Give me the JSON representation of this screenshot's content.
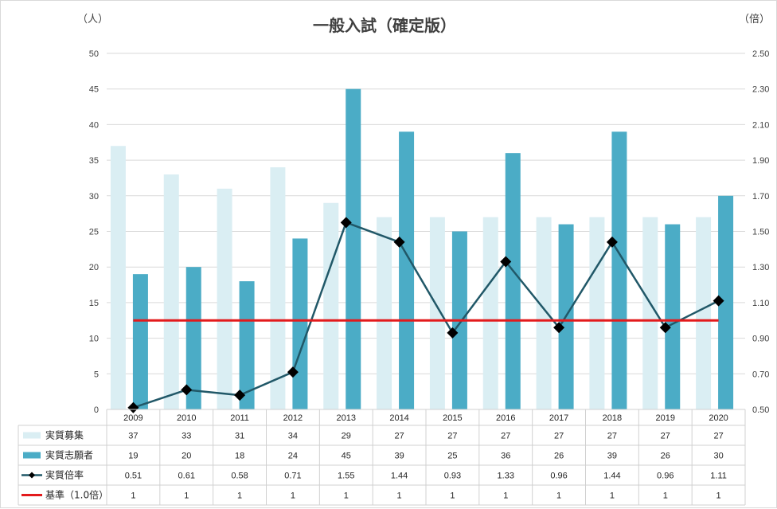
{
  "chart_data": {
    "type": "bar",
    "title": "一般入試（確定版）",
    "left_unit": "（人）",
    "right_unit": "（倍）",
    "categories": [
      "2009",
      "2010",
      "2011",
      "2012",
      "2013",
      "2014",
      "2015",
      "2016",
      "2017",
      "2018",
      "2019",
      "2020"
    ],
    "ylim": [
      0,
      50
    ],
    "y_ticks": [
      "0",
      "5",
      "10",
      "15",
      "20",
      "25",
      "30",
      "35",
      "40",
      "45",
      "50"
    ],
    "y2lim": [
      0.5,
      2.5
    ],
    "y2_ticks": [
      "0.50",
      "0.70",
      "0.90",
      "1.10",
      "1.30",
      "1.50",
      "1.70",
      "1.90",
      "2.10",
      "2.30",
      "2.50"
    ],
    "grid": true,
    "legend": "data-table",
    "series": [
      {
        "name": "実質募集",
        "kind": "bar",
        "axis": "left",
        "color": "#daeef3",
        "values": [
          37,
          33,
          31,
          34,
          29,
          27,
          27,
          27,
          27,
          27,
          27,
          27
        ],
        "labels": [
          "37",
          "33",
          "31",
          "34",
          "29",
          "27",
          "27",
          "27",
          "27",
          "27",
          "27",
          "27"
        ]
      },
      {
        "name": "実質志願者",
        "kind": "bar",
        "axis": "left",
        "color": "#4bacc6",
        "values": [
          19,
          20,
          18,
          24,
          45,
          39,
          25,
          36,
          26,
          39,
          26,
          30
        ],
        "labels": [
          "19",
          "20",
          "18",
          "24",
          "45",
          "39",
          "25",
          "36",
          "26",
          "39",
          "26",
          "30"
        ]
      },
      {
        "name": "実質倍率",
        "kind": "line",
        "axis": "right",
        "color": "#215868",
        "values": [
          0.51,
          0.61,
          0.58,
          0.71,
          1.55,
          1.44,
          0.93,
          1.33,
          0.96,
          1.44,
          0.96,
          1.11
        ],
        "labels": [
          "0.51",
          "0.61",
          "0.58",
          "0.71",
          "1.55",
          "1.44",
          "0.93",
          "1.33",
          "0.96",
          "1.44",
          "0.96",
          "1.11"
        ]
      },
      {
        "name": "基準（1.0倍）",
        "kind": "line",
        "axis": "right",
        "color": "#e31a1c",
        "values": [
          1,
          1,
          1,
          1,
          1,
          1,
          1,
          1,
          1,
          1,
          1,
          1
        ],
        "labels": [
          "1",
          "1",
          "1",
          "1",
          "1",
          "1",
          "1",
          "1",
          "1",
          "1",
          "1",
          "1"
        ]
      }
    ]
  }
}
